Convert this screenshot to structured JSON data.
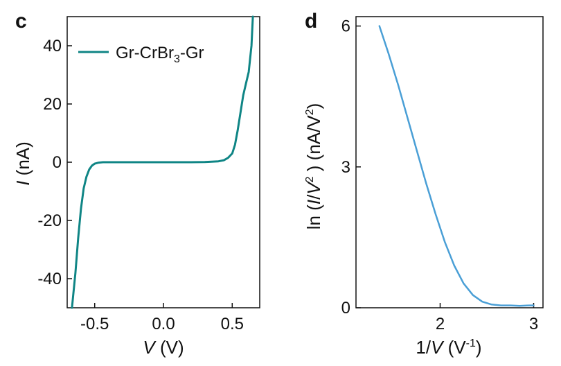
{
  "chart_data": [
    {
      "panel_label": "c",
      "type": "line",
      "xlabel_var": "V",
      "xlabel_unit": "(V)",
      "ylabel_var": "I",
      "ylabel_unit": "(nA)",
      "xlim": [
        -0.7,
        0.7
      ],
      "ylim": [
        -50,
        50
      ],
      "xticks": [
        -0.5,
        0.0,
        0.5
      ],
      "xtick_labels": [
        "-0.5",
        "0.0",
        "0.5"
      ],
      "yticks": [
        -40,
        -20,
        0,
        20,
        40
      ],
      "ytick_labels": [
        "-40",
        "-20",
        "0",
        "20",
        "40"
      ],
      "legend": {
        "placement": "top-left",
        "text_main": "Gr-CrBr",
        "text_sub": "3",
        "text_tail": "-Gr"
      },
      "series": [
        {
          "name": "Gr-CrBr3-Gr",
          "color": "#0f8585",
          "x": [
            -0.665,
            -0.64,
            -0.62,
            -0.6,
            -0.58,
            -0.56,
            -0.54,
            -0.52,
            -0.5,
            -0.47,
            -0.44,
            -0.4,
            -0.3,
            -0.2,
            -0.1,
            0.0,
            0.1,
            0.2,
            0.3,
            0.4,
            0.44,
            0.47,
            0.5,
            0.52,
            0.54,
            0.56,
            0.58,
            0.6,
            0.62,
            0.64,
            0.65
          ],
          "y": [
            -50,
            -38,
            -26,
            -16,
            -9,
            -5,
            -2.5,
            -1.2,
            -0.5,
            -0.15,
            0,
            0,
            0,
            0,
            0,
            0,
            0,
            0,
            0.05,
            0.3,
            0.7,
            1.5,
            3,
            6,
            11,
            17,
            23,
            27,
            31,
            40,
            50
          ]
        }
      ]
    },
    {
      "panel_label": "d",
      "type": "line",
      "xlabel_pre": "1/",
      "xlabel_var": "V",
      "xlabel_unit_main": "(V",
      "xlabel_unit_sup": "-1",
      "xlabel_unit_tail": ")",
      "ylabel_pre": "ln",
      "ylabel_var_i": "I",
      "ylabel_slash": "/",
      "ylabel_var_v": "V",
      "ylabel_sup": "2",
      "ylabel_unit_main": "(nA/V",
      "ylabel_unit_sup": "2",
      "ylabel_unit_tail": ")",
      "xlim": [
        1.1,
        3.1
      ],
      "ylim": [
        0,
        6.2
      ],
      "xticks": [
        2,
        3
      ],
      "xtick_labels": [
        "2",
        "3"
      ],
      "yticks": [
        0,
        3,
        6
      ],
      "ytick_labels": [
        "0",
        "3",
        "6"
      ],
      "series": [
        {
          "name": "",
          "color": "#4a9fd6",
          "x": [
            1.35,
            1.45,
            1.55,
            1.65,
            1.75,
            1.85,
            1.95,
            2.05,
            2.15,
            2.25,
            2.35,
            2.45,
            2.55,
            2.65,
            2.75,
            2.85,
            2.95,
            3.0
          ],
          "y": [
            6.0,
            5.4,
            4.75,
            4.05,
            3.35,
            2.65,
            2.0,
            1.4,
            0.9,
            0.52,
            0.27,
            0.13,
            0.07,
            0.05,
            0.05,
            0.04,
            0.05,
            0.05
          ]
        }
      ]
    }
  ]
}
